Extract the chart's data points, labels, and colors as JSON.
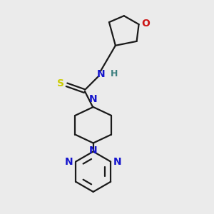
{
  "bg_color": "#ebebeb",
  "bond_color": "#1a1a1a",
  "N_color": "#1414cc",
  "O_color": "#cc1414",
  "S_color": "#cccc00",
  "H_color": "#3d8080",
  "line_width": 1.6,
  "font_size": 10,
  "small_font_size": 9,
  "figsize": [
    3.0,
    3.0
  ],
  "dpi": 100,
  "xlim": [
    0,
    10
  ],
  "ylim": [
    0,
    10
  ]
}
